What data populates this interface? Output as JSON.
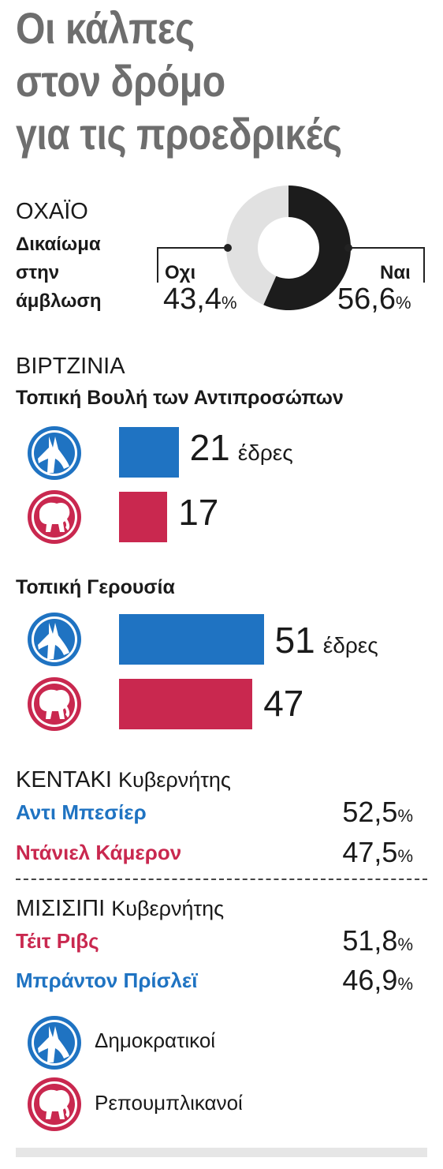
{
  "title": [
    "Οι κάλπες",
    "στον δρόμο",
    "για τις προεδρικές"
  ],
  "ohio": {
    "state": "ΟΧΑΪΟ",
    "measure": [
      "Δικαίωμα",
      "στην",
      "άμβλωση"
    ],
    "no_label": "Οχι",
    "yes_label": "Ναι",
    "no_value": "43,4",
    "yes_value": "56,6",
    "pct": "%"
  },
  "virginia": {
    "state": "ΒΙΡΤΖΙΝΙΑ",
    "house_title": "Τοπική Βουλή των Αντιπροσώπων",
    "senate_title": "Τοπική Γερουσία",
    "unit": "έδρες",
    "house_dem": "21",
    "house_rep": "17",
    "senate_dem": "51",
    "senate_rep": "47"
  },
  "kentucky": {
    "state": "ΚΕΝΤΑΚΙ",
    "office": "Κυβερνήτης",
    "cand1": "Αντι Μπεσίερ",
    "val1": "52,5",
    "cand2": "Ντάνιελ Κάμερον",
    "val2": "47,5",
    "pct": "%"
  },
  "mississippi": {
    "state": "ΜΙΣΙΣΙΠΙ",
    "office": "Κυβερνήτης",
    "cand1": "Τέιτ Ριβς",
    "val1": "51,8",
    "cand2": "Μπράντον Πρίσλεϊ",
    "val2": "46,9",
    "pct": "%"
  },
  "legend": {
    "dem": "Δημοκρατικοί",
    "rep": "Ρεπουμπλικανοί"
  },
  "colors": {
    "dem": "#1f73c2",
    "rep": "#c9284f",
    "yes": "#1c1c1c",
    "no": "#e1e1e1",
    "title": "#6e6e6e"
  },
  "chart_data": [
    {
      "type": "pie",
      "categories": [
        "Οχι",
        "Ναι"
      ],
      "values": [
        43.4,
        56.6
      ]
    },
    {
      "type": "bar",
      "title": "Τοπική Βουλή των Αντιπροσώπων",
      "categories": [
        "Δημοκρατικοί",
        "Ρεπουμπλικανοί"
      ],
      "values": [
        21,
        17
      ]
    },
    {
      "type": "bar",
      "title": "Τοπική Γερουσία",
      "categories": [
        "Δημοκρατικοί",
        "Ρεπουμπλικανοί"
      ],
      "values": [
        51,
        47
      ]
    }
  ]
}
